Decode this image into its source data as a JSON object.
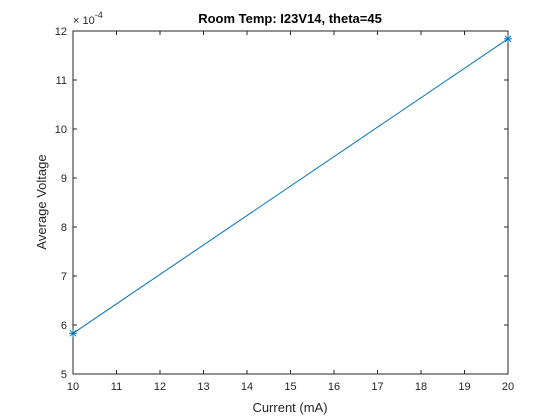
{
  "chart_data": {
    "type": "line",
    "title": "Room Temp: I23V14, theta=45",
    "xlabel": "Current (mA)",
    "ylabel": "Average Voltage",
    "y_exponent_base": "× 10",
    "y_exponent_power": "-4",
    "xlim": [
      10,
      20
    ],
    "ylim": [
      5,
      12
    ],
    "x_ticks": [
      10,
      11,
      12,
      13,
      14,
      15,
      16,
      17,
      18,
      19,
      20
    ],
    "y_ticks": [
      5,
      6,
      7,
      8,
      9,
      10,
      11,
      12
    ],
    "grid": false,
    "series": [
      {
        "x": [
          10,
          20
        ],
        "y": [
          5.83,
          11.84
        ],
        "color": "#0072BD",
        "marker": "asterisk"
      }
    ]
  }
}
